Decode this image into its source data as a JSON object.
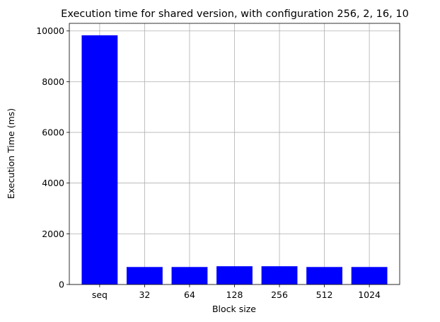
{
  "chart_data": {
    "type": "bar",
    "title": "Execution time for shared version, with configuration 256, 2, 16, 10",
    "xlabel": "Block size",
    "ylabel": "Execution Time (ms)",
    "categories": [
      "seq",
      "32",
      "64",
      "128",
      "256",
      "512",
      "1024"
    ],
    "values": [
      9830,
      690,
      690,
      720,
      720,
      690,
      690
    ],
    "ylim": [
      0,
      10300
    ],
    "yticks": [
      0,
      2000,
      4000,
      6000,
      8000,
      10000
    ],
    "grid": true,
    "bar_color": "#0000ff"
  }
}
